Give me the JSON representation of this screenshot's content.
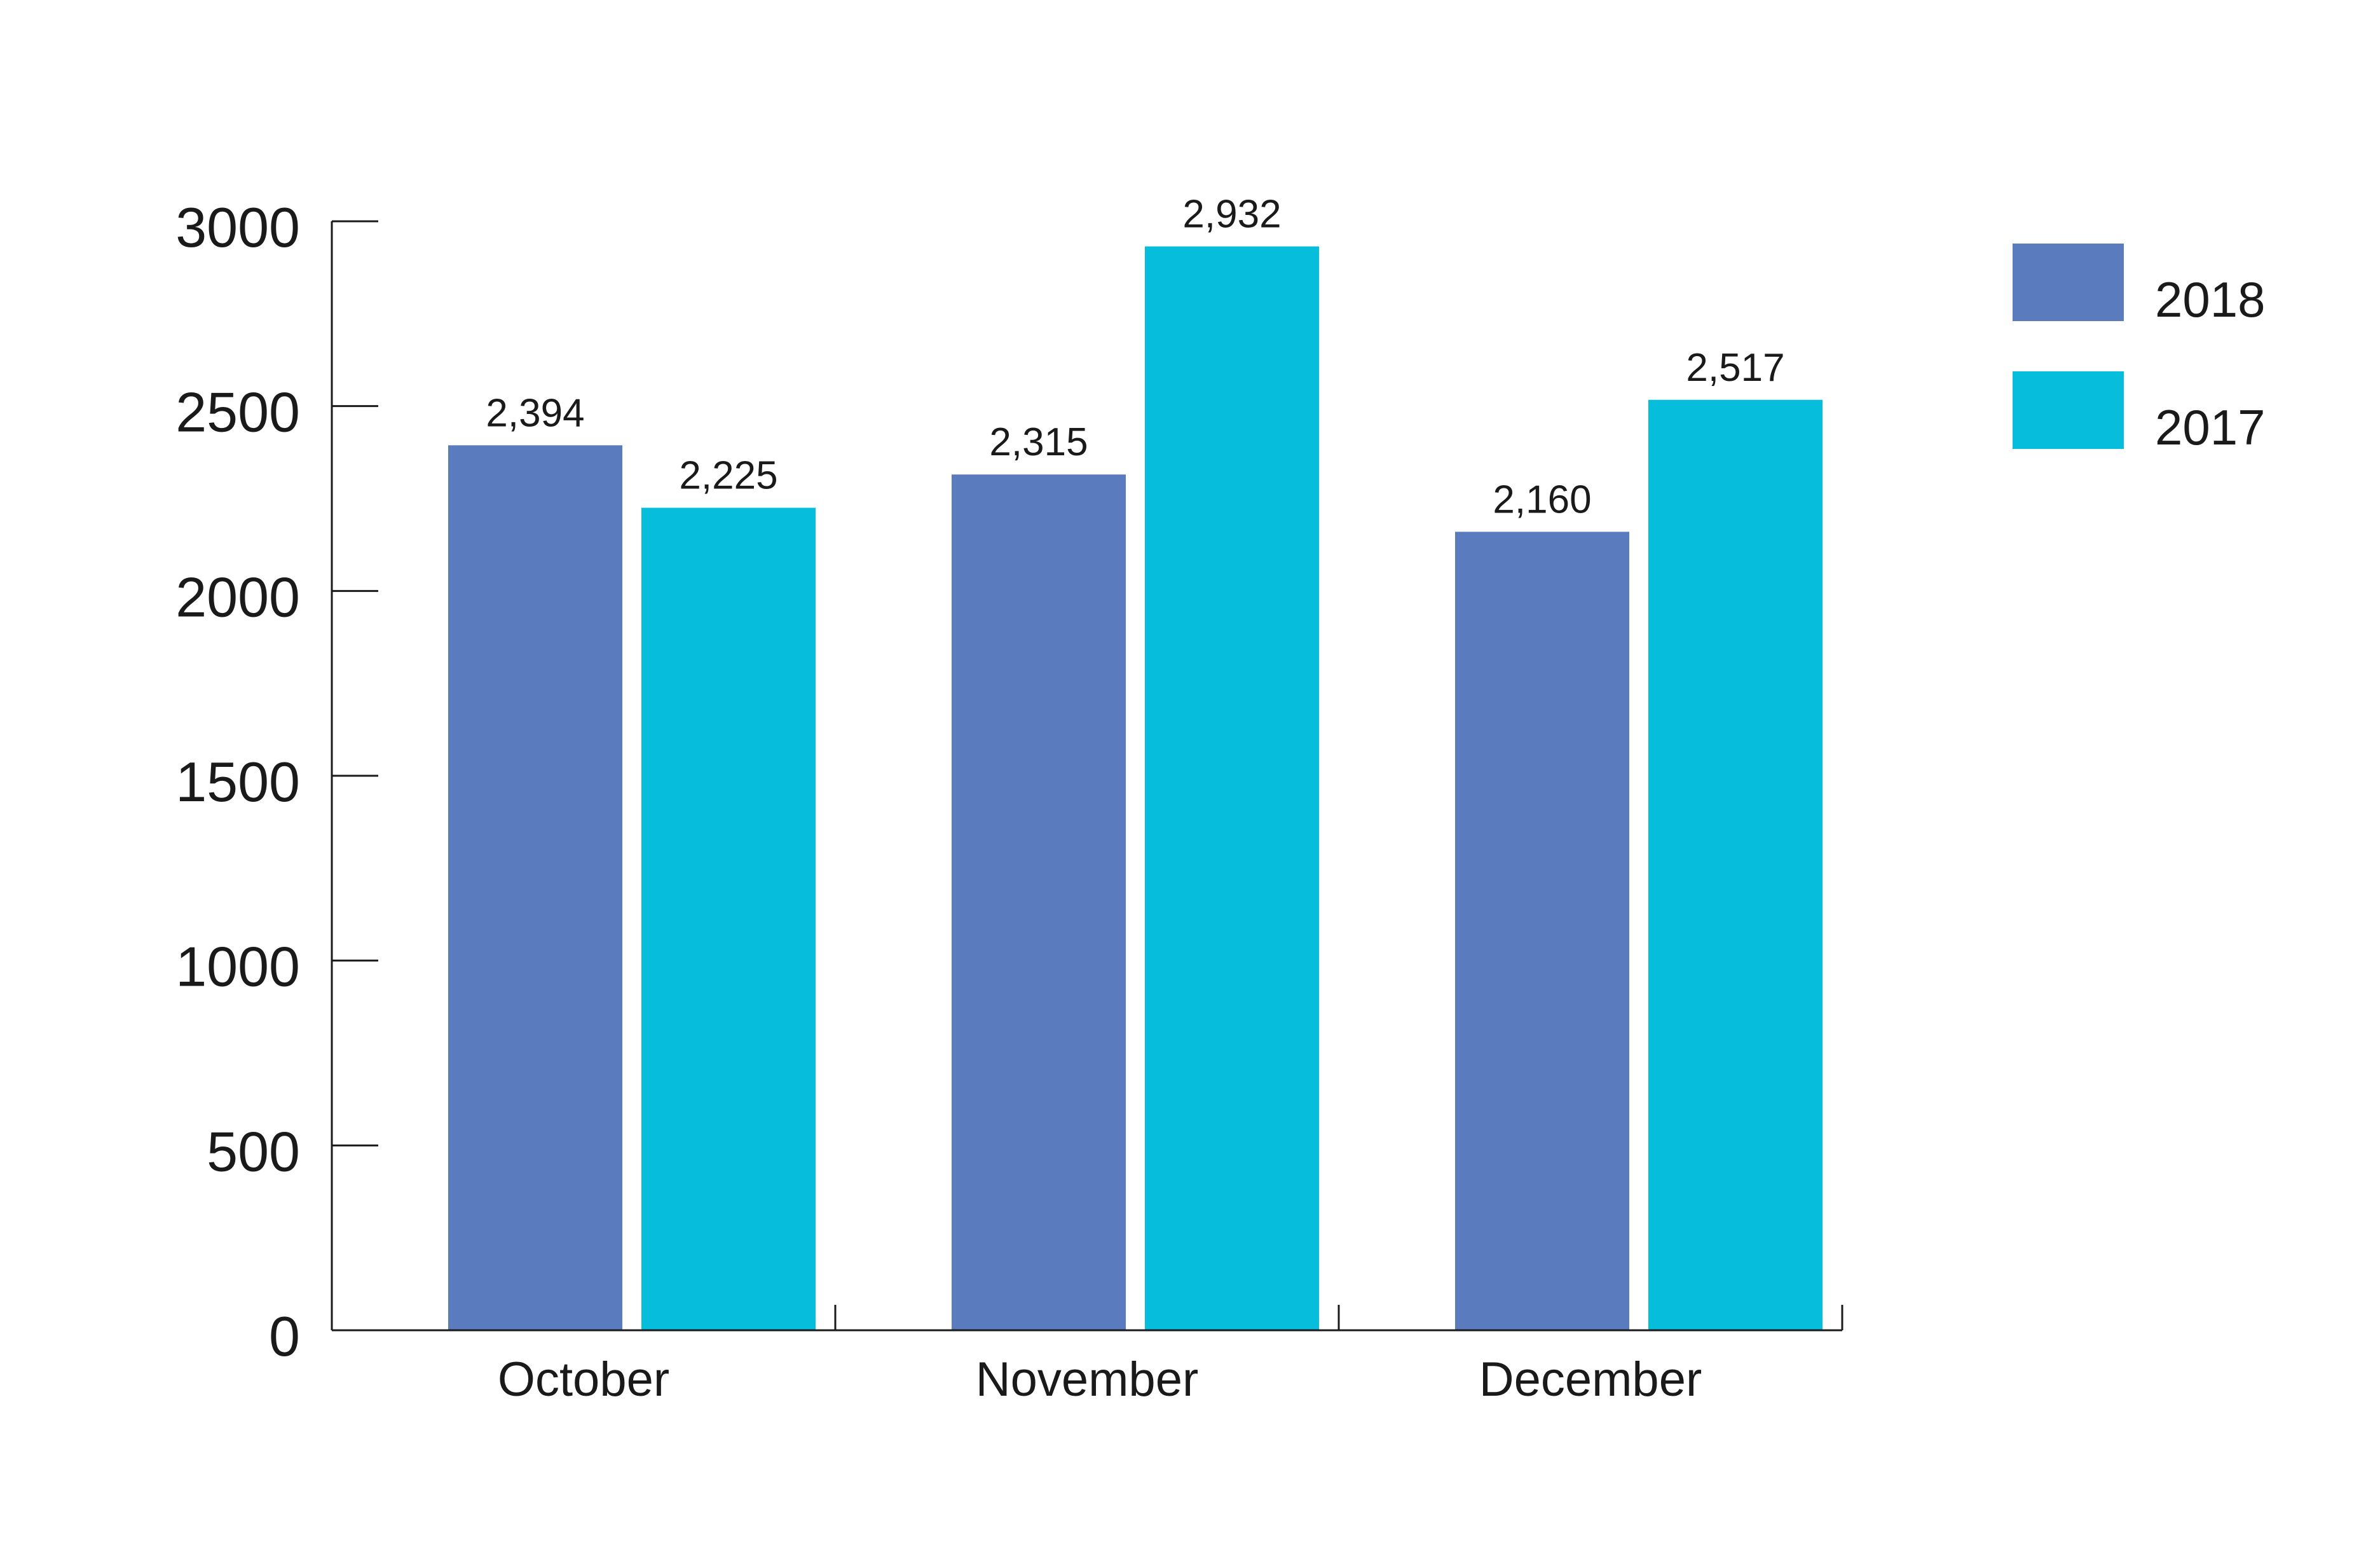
{
  "chart_data": {
    "type": "bar",
    "title": "",
    "xlabel": "",
    "ylabel": "",
    "categories": [
      "October",
      "November",
      "December"
    ],
    "series": [
      {
        "name": "2018",
        "values": [
          2394,
          2315,
          2160
        ],
        "labels": [
          "2,394",
          "2,315",
          "2,160"
        ],
        "color": "#5a7bbd"
      },
      {
        "name": "2017",
        "values": [
          2225,
          2932,
          2517
        ],
        "labels": [
          "2,225",
          "2,932",
          "2,517"
        ],
        "color": "#06bedb"
      }
    ],
    "ylim": [
      0,
      3000
    ],
    "yticks": [
      0,
      500,
      1000,
      1500,
      2000,
      2500,
      3000
    ],
    "ytick_labels": [
      "0",
      "500",
      "1000",
      "1500",
      "2000",
      "2500",
      "3000"
    ],
    "grid": false,
    "legend": {
      "position": "top-right"
    }
  }
}
